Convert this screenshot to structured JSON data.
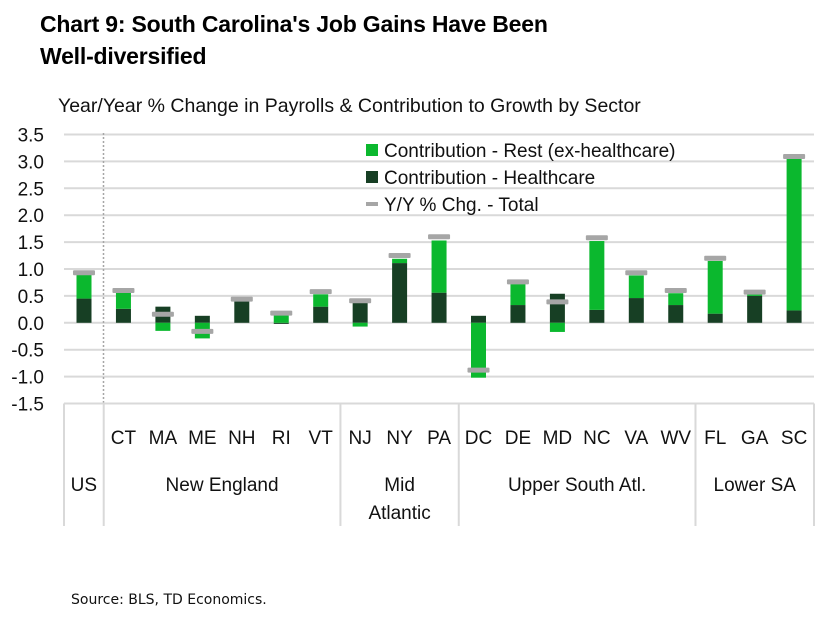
{
  "title": {
    "line1": "Chart 9: South Carolina's Job Gains Have Been",
    "line2": "Well-diversified"
  },
  "subtitle": "Year/Year % Change in Payrolls & Contribution to Growth by Sector",
  "source": "Source: BLS, TD Economics.",
  "colors": {
    "rest": "#0BB82E",
    "healthcare": "#173F24",
    "total": "#A6A6A6",
    "grid": "#D9D9D9"
  },
  "chart_data": {
    "type": "bar",
    "stacked": true,
    "title": "Chart 9: South Carolina's Job Gains Have Been Well-diversified",
    "subtitle": "Year/Year % Change in Payrolls & Contribution to Growth by Sector",
    "xlabel": "",
    "ylabel": "",
    "ylim": [
      -1.5,
      3.5
    ],
    "yticks": [
      "3.5",
      "3.0",
      "2.5",
      "2.0",
      "1.5",
      "1.0",
      "0.5",
      "0.0",
      "-0.5",
      "-1.0",
      "-1.5"
    ],
    "ytick_values": [
      3.5,
      3.0,
      2.5,
      2.0,
      1.5,
      1.0,
      0.5,
      0.0,
      -0.5,
      -1.0,
      -1.5
    ],
    "grid": true,
    "legend_position": "top-right",
    "categories": [
      "US",
      "CT",
      "MA",
      "ME",
      "NH",
      "RI",
      "VT",
      "NJ",
      "NY",
      "PA",
      "DC",
      "DE",
      "MD",
      "NC",
      "VA",
      "WV",
      "FL",
      "GA",
      "SC"
    ],
    "groups": [
      {
        "label": "US",
        "label_lines": [
          "US"
        ],
        "members": [
          "US"
        ]
      },
      {
        "label": "New England",
        "label_lines": [
          "New England"
        ],
        "members": [
          "CT",
          "MA",
          "ME",
          "NH",
          "RI",
          "VT"
        ]
      },
      {
        "label": "Mid Atlantic",
        "label_lines": [
          "Mid",
          "Atlantic"
        ],
        "members": [
          "NJ",
          "NY",
          "PA"
        ]
      },
      {
        "label": "Upper South Atl.",
        "label_lines": [
          "Upper South Atl."
        ],
        "members": [
          "DC",
          "DE",
          "MD",
          "NC",
          "VA",
          "WV"
        ]
      },
      {
        "label": "Lower SA",
        "label_lines": [
          "Lower SA"
        ],
        "members": [
          "FL",
          "GA",
          "SC"
        ]
      }
    ],
    "series": [
      {
        "name": "Contribution - Healthcare",
        "type": "bar",
        "values": [
          0.45,
          0.26,
          0.3,
          0.13,
          0.4,
          -0.02,
          0.3,
          0.37,
          1.11,
          0.56,
          0.13,
          0.33,
          0.54,
          0.24,
          0.46,
          0.33,
          0.17,
          0.5,
          0.23
        ]
      },
      {
        "name": "Contribution - Rest (ex-healthcare)",
        "type": "bar",
        "values": [
          0.46,
          0.31,
          -0.15,
          -0.29,
          0.04,
          0.15,
          0.23,
          -0.07,
          0.08,
          0.97,
          -1.02,
          0.39,
          -0.17,
          1.28,
          0.42,
          0.22,
          0.98,
          0.03,
          2.82
        ]
      },
      {
        "name": "Y/Y % Chg. - Total",
        "type": "marker",
        "values": [
          0.93,
          0.6,
          0.16,
          -0.16,
          0.44,
          0.18,
          0.58,
          0.41,
          1.25,
          1.6,
          -0.88,
          0.76,
          0.39,
          1.58,
          0.93,
          0.6,
          1.2,
          0.57,
          3.09
        ]
      }
    ],
    "legend": [
      {
        "label": "Contribution - Rest (ex-healthcare)",
        "kind": "square",
        "series": 1
      },
      {
        "label": "Contribution - Healthcare",
        "kind": "square",
        "series": 0
      },
      {
        "label": "Y/Y % Chg. - Total",
        "kind": "dash",
        "series": 2
      }
    ]
  }
}
